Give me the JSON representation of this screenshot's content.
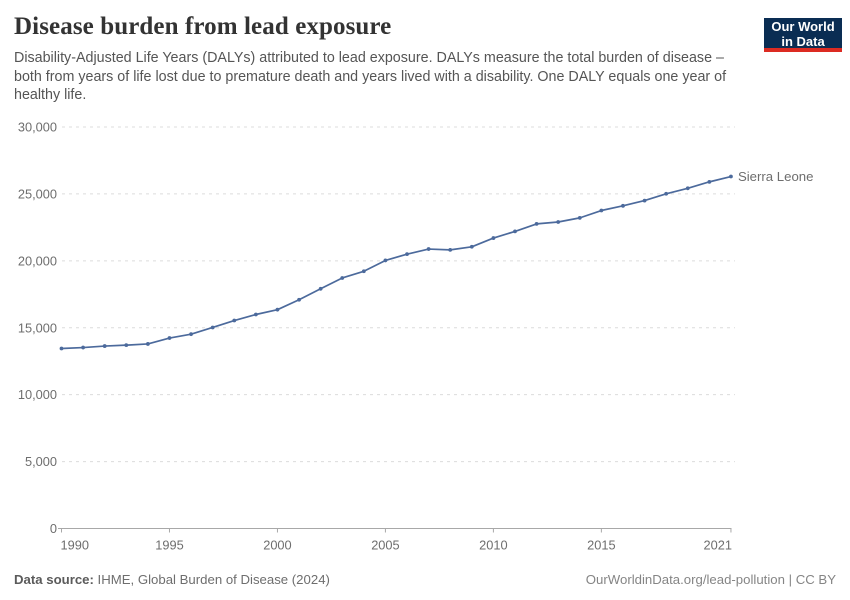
{
  "header": {
    "title": "Disease burden from lead exposure",
    "subtitle": "Disability-Adjusted Life Years (DALYs) attributed to lead exposure. DALYs measure the total burden of disease – both from years of life lost due to premature death and years lived with a disability. One DALY equals one year of healthy life.",
    "logo": {
      "line1": "Our World",
      "line2": "in Data",
      "bg_color": "#0a2d53",
      "accent_color": "#dc2b22"
    }
  },
  "chart_data": {
    "type": "line",
    "title": "Disease burden from lead exposure",
    "xlabel": "",
    "ylabel": "",
    "xlim": [
      1990,
      2021
    ],
    "ylim": [
      0,
      30000
    ],
    "x_ticks": [
      1990,
      1995,
      2000,
      2005,
      2010,
      2015,
      2021
    ],
    "y_ticks": [
      0,
      5000,
      10000,
      15000,
      20000,
      25000,
      30000
    ],
    "grid": "horizontal-dashed",
    "legend_position": "end-of-line",
    "x": [
      1990,
      1991,
      1992,
      1993,
      1994,
      1995,
      1996,
      1997,
      1998,
      1999,
      2000,
      2001,
      2002,
      2003,
      2004,
      2005,
      2006,
      2007,
      2008,
      2009,
      2010,
      2011,
      2012,
      2013,
      2014,
      2015,
      2016,
      2017,
      2018,
      2019,
      2020,
      2021
    ],
    "series": [
      {
        "name": "Sierra Leone",
        "color": "#4c6a9c",
        "values": [
          13450,
          13520,
          13630,
          13700,
          13790,
          14230,
          14520,
          15020,
          15540,
          15990,
          16350,
          17090,
          17910,
          18720,
          19220,
          20030,
          20500,
          20880,
          20820,
          21050,
          21700,
          22200,
          22760,
          22900,
          23210,
          23760,
          24110,
          24500,
          25010,
          25420,
          25900,
          26300
        ]
      }
    ],
    "colors": {
      "gridline": "#dcdcdc",
      "axis": "#a8a8a8",
      "tick_text": "#6e6e6e"
    }
  },
  "footer": {
    "source_label": "Data source:",
    "source_text": " IHME, Global Burden of Disease (2024)",
    "link_text": "OurWorldinData.org/lead-pollution | CC BY"
  }
}
